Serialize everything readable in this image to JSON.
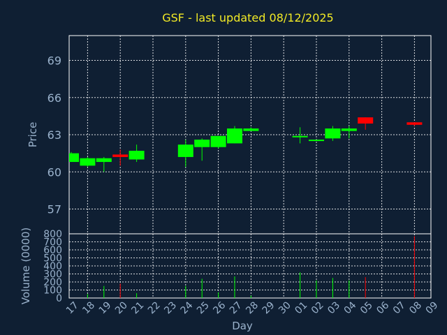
{
  "chart_data": {
    "type": "candlestick",
    "title": "GSF - last updated 08/12/2025",
    "colors": {
      "background": "#0f1f33",
      "grid": "#ffffff",
      "axis_text": "#9ab2cc",
      "title": "#f2ea26",
      "up": "#00ff00",
      "down": "#ff0000"
    },
    "x_ticks": [
      "17",
      "18",
      "19",
      "20",
      "21",
      "22",
      "23",
      "24",
      "25",
      "26",
      "27",
      "28",
      "29",
      "30",
      "01",
      "02",
      "03",
      "04",
      "05",
      "06",
      "07",
      "08",
      "09"
    ],
    "xlabel": "Day",
    "price_panel": {
      "ylabel": "Price",
      "ylim": [
        55,
        71
      ],
      "yticks": [
        57,
        60,
        63,
        66,
        69
      ]
    },
    "volume_panel": {
      "ylabel": "Volume (0000)",
      "ylim": [
        0,
        800
      ],
      "yticks": [
        0,
        100,
        200,
        300,
        400,
        500,
        600,
        700,
        800
      ]
    },
    "candles": [
      {
        "x": 0,
        "open": 60.8,
        "close": 61.5,
        "high": 61.6,
        "low": 60.8,
        "volume": 0
      },
      {
        "x": 1,
        "open": 60.5,
        "close": 61.1,
        "high": 61.2,
        "low": 60.4,
        "volume": 50
      },
      {
        "x": 2,
        "open": 60.8,
        "close": 61.1,
        "high": 61.2,
        "low": 60.0,
        "volume": 150
      },
      {
        "x": 3,
        "open": 61.4,
        "close": 61.2,
        "high": 61.8,
        "low": 60.5,
        "volume": 180
      },
      {
        "x": 4,
        "open": 61.0,
        "close": 61.7,
        "high": 62.2,
        "low": 60.8,
        "volume": 60
      },
      {
        "x": 7,
        "open": 61.2,
        "close": 62.2,
        "high": 62.6,
        "low": 60.4,
        "volume": 150
      },
      {
        "x": 8,
        "open": 62.0,
        "close": 62.6,
        "high": 62.7,
        "low": 60.9,
        "volume": 240
      },
      {
        "x": 9,
        "open": 62.0,
        "close": 62.9,
        "high": 62.9,
        "low": 61.9,
        "volume": 70
      },
      {
        "x": 10,
        "open": 62.3,
        "close": 63.5,
        "high": 63.7,
        "low": 62.3,
        "volume": 270
      },
      {
        "x": 11,
        "open": 63.3,
        "close": 63.5,
        "high": 63.6,
        "low": 63.3,
        "volume": 30
      },
      {
        "x": 14,
        "open": 62.9,
        "close": 62.9,
        "high": 63.6,
        "low": 62.3,
        "volume": 320
      },
      {
        "x": 15,
        "open": 62.5,
        "close": 62.6,
        "high": 62.6,
        "low": 62.5,
        "volume": 220
      },
      {
        "x": 16,
        "open": 62.7,
        "close": 63.5,
        "high": 63.7,
        "low": 62.5,
        "volume": 250
      },
      {
        "x": 17,
        "open": 63.3,
        "close": 63.5,
        "high": 63.7,
        "low": 62.7,
        "volume": 220
      },
      {
        "x": 18,
        "open": 64.4,
        "close": 63.9,
        "high": 64.4,
        "low": 63.4,
        "volume": 260
      },
      {
        "x": 21,
        "open": 64.0,
        "close": 63.8,
        "high": 64.0,
        "low": 63.7,
        "volume": 770
      }
    ]
  }
}
